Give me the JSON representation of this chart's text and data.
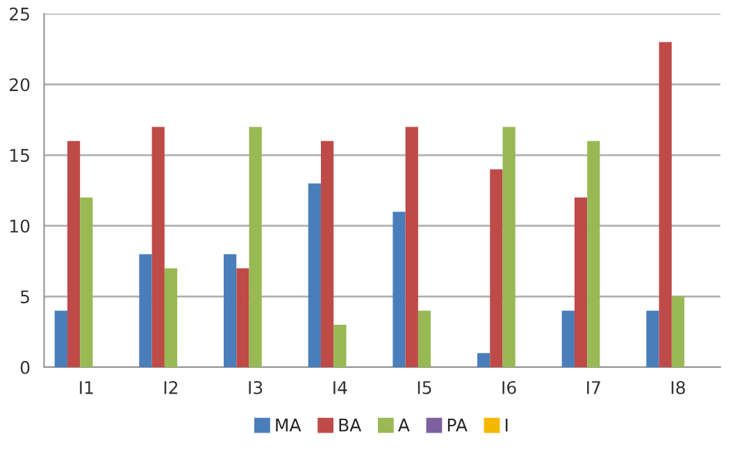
{
  "chart_data": {
    "type": "bar",
    "categories": [
      "I1",
      "I2",
      "I3",
      "I4",
      "I5",
      "I6",
      "I7",
      "I8"
    ],
    "series": [
      {
        "name": "MA",
        "color": "#4a7ebb",
        "values": [
          4,
          8,
          8,
          13,
          11,
          1,
          4,
          4
        ]
      },
      {
        "name": "BA",
        "color": "#be4b48",
        "values": [
          16,
          17,
          7,
          16,
          17,
          14,
          12,
          23
        ]
      },
      {
        "name": "A",
        "color": "#98b954",
        "values": [
          12,
          7,
          17,
          3,
          4,
          17,
          16,
          5
        ]
      },
      {
        "name": "PA",
        "color": "#7d60a0",
        "values": [
          0,
          0,
          0,
          0,
          0,
          0,
          0,
          0
        ]
      },
      {
        "name": "I",
        "color": "#f4b800",
        "values": [
          0,
          0,
          0,
          0,
          0,
          0,
          0,
          0
        ]
      }
    ],
    "ylim": [
      0,
      25
    ],
    "yticks": [
      0,
      5,
      10,
      15,
      20,
      25
    ],
    "grid": "y",
    "legend": "bottom"
  }
}
